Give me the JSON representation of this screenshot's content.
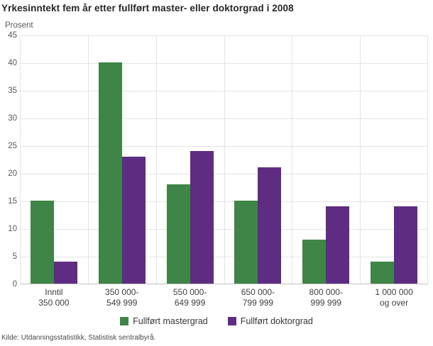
{
  "chart": {
    "source": "Kilde: Utdanningsstatistikk, Statistisk sentralbyrå."
  },
  "colors": {
    "master_green": "#3E8547",
    "doctor_purple": "#5E2C82",
    "gridline": "#e4e4e4",
    "axis_line": "#c2c2c2"
  },
  "chart_data": {
    "type": "bar",
    "title": "Yrkesinntekt fem år etter fullført master- eller doktorgrad i 2008",
    "ylabel": "Prosent",
    "xlabel": "",
    "categories": [
      "Inntil\n350 000",
      "350 000-\n549 999",
      "550 000-\n649 999",
      "650 000-\n799 999",
      "800 000-\n999 999",
      "1 000 000\nog over"
    ],
    "series": [
      {
        "name": "Fullført mastergrad",
        "color": "#3E8547",
        "values": [
          15,
          40,
          18,
          15,
          8,
          4
        ]
      },
      {
        "name": "Fullført doktorgrad",
        "color": "#5E2C82",
        "values": [
          4,
          23,
          24,
          21,
          14,
          14
        ]
      }
    ],
    "ylim": [
      0,
      45
    ],
    "ytick_step": 5,
    "grid": true,
    "legend_position": "bottom"
  }
}
